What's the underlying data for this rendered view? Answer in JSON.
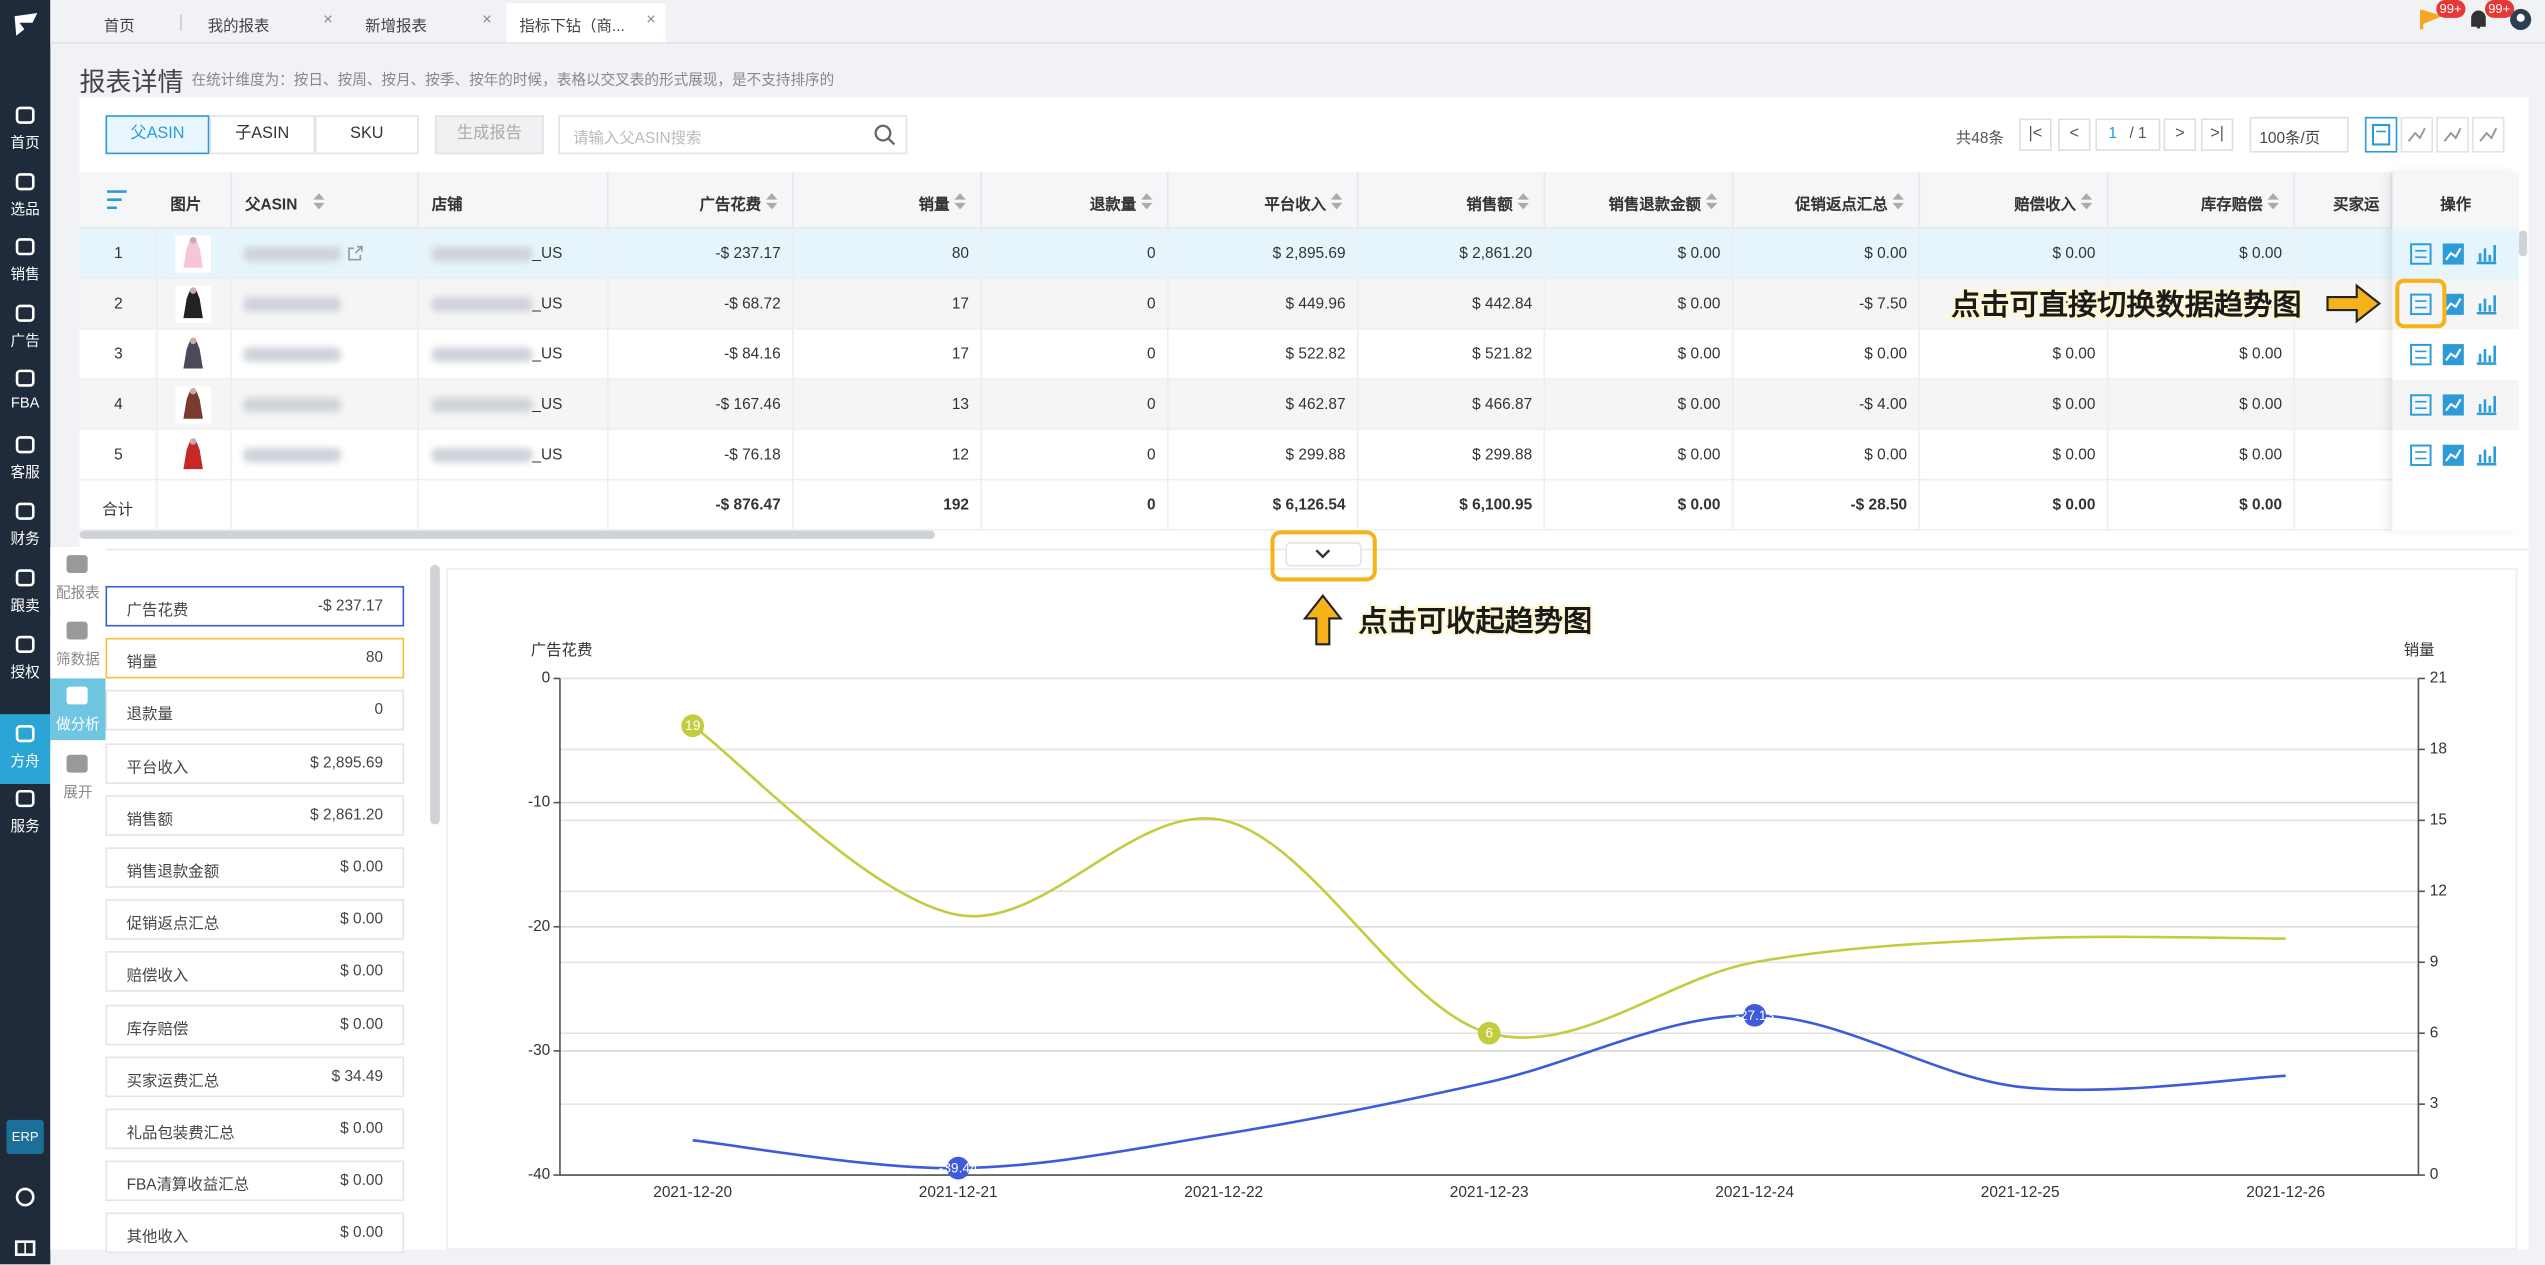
{
  "sidebar": {
    "items": [
      "首页",
      "选品",
      "销售",
      "广告",
      "FBA",
      "客服",
      "财务",
      "跟卖",
      "授权",
      "方舟",
      "服务"
    ],
    "active": 9,
    "erp": "ERP"
  },
  "tabs": [
    "首页",
    "我的报表",
    "新增报表",
    "指标下钻（商..."
  ],
  "active_tab": 3,
  "badges": [
    "99+",
    "99+"
  ],
  "header": {
    "title": "报表详情",
    "subtitle": "在统计维度为：按日、按周、按月、按季、按年的时候，表格以交叉表的形式展现，是不支持排序的"
  },
  "toolbar": {
    "segments": [
      "父ASIN",
      "子ASIN",
      "SKU"
    ],
    "active_segment": 0,
    "button": "生成报告",
    "search_placeholder": "请输入父ASIN搜索",
    "total": "共48条",
    "page": "1",
    "pages": "/ 1",
    "page_size": "100条/页"
  },
  "table": {
    "columns": [
      "图片",
      "父ASIN",
      "店铺",
      "广告花费",
      "销量",
      "退款量",
      "平台收入",
      "销售额",
      "销售退款金额",
      "促销返点汇总",
      "赔偿收入",
      "库存赔偿",
      "买家运",
      "操作"
    ],
    "rows": [
      {
        "index": "1",
        "store": "_US",
        "cells": [
          "-$ 237.17",
          "80",
          "0",
          "$ 2,895.69",
          "$ 2,861.20",
          "$ 0.00",
          "$ 0.00",
          "$ 0.00",
          "$ 0.00"
        ]
      },
      {
        "index": "2",
        "store": "_US",
        "cells": [
          "-$ 68.72",
          "17",
          "0",
          "$ 449.96",
          "$ 442.84",
          "$ 0.00",
          "-$ 7.50",
          "$ 0.00",
          "$ 0.00"
        ]
      },
      {
        "index": "3",
        "store": "_US",
        "cells": [
          "-$ 84.16",
          "17",
          "0",
          "$ 522.82",
          "$ 521.82",
          "$ 0.00",
          "$ 0.00",
          "$ 0.00",
          "$ 0.00"
        ]
      },
      {
        "index": "4",
        "store": "_US",
        "cells": [
          "-$ 167.46",
          "13",
          "0",
          "$ 462.87",
          "$ 466.87",
          "$ 0.00",
          "-$ 4.00",
          "$ 0.00",
          "$ 0.00"
        ]
      },
      {
        "index": "5",
        "store": "_US",
        "cells": [
          "-$ 76.18",
          "12",
          "0",
          "$ 299.88",
          "$ 299.88",
          "$ 0.00",
          "$ 0.00",
          "$ 0.00",
          "$ 0.00"
        ]
      }
    ],
    "total": {
      "label": "合计",
      "cells": [
        "-$ 876.47",
        "192",
        "0",
        "$ 6,126.54",
        "$ 6,100.95",
        "$ 0.00",
        "-$ 28.50",
        "$ 0.00",
        "$ 0.00"
      ]
    }
  },
  "side_tools": [
    "配报表",
    "筛数据",
    "做分析",
    "展开"
  ],
  "active_tool": 2,
  "metrics": [
    {
      "label": "广告花费",
      "value": "-$ 237.17"
    },
    {
      "label": "销量",
      "value": "80"
    },
    {
      "label": "退款量",
      "value": "0"
    },
    {
      "label": "平台收入",
      "value": "$ 2,895.69"
    },
    {
      "label": "销售额",
      "value": "$ 2,861.20"
    },
    {
      "label": "销售退款金额",
      "value": "$ 0.00"
    },
    {
      "label": "促销返点汇总",
      "value": "$ 0.00"
    },
    {
      "label": "赔偿收入",
      "value": "$ 0.00"
    },
    {
      "label": "库存赔偿",
      "value": "$ 0.00"
    },
    {
      "label": "买家运费汇总",
      "value": "$ 34.49"
    },
    {
      "label": "礼品包装费汇总",
      "value": "$ 0.00"
    },
    {
      "label": "FBA清算收益汇总",
      "value": "$ 0.00"
    },
    {
      "label": "其他收入",
      "value": "$ 0.00"
    }
  ],
  "chart_data": {
    "type": "line",
    "y_label": "广告花费",
    "y2_label": "销量",
    "categories": [
      "2021-12-20",
      "2021-12-21",
      "2021-12-22",
      "2021-12-23",
      "2021-12-24",
      "2021-12-25",
      "2021-12-26"
    ],
    "ylim": [
      -40,
      0
    ],
    "yticks": [
      0,
      -10,
      -20,
      -30,
      -40
    ],
    "y2lim": [
      0,
      21
    ],
    "y2ticks": [
      21,
      18,
      15,
      12,
      9,
      6,
      3,
      0
    ],
    "grid": true,
    "series": [
      {
        "color": "#c3cb3e",
        "axis": "y2",
        "values": [
          19,
          11,
          15,
          6,
          9,
          10,
          10
        ],
        "value_labels": [
          "19",
          null,
          null,
          "6",
          null,
          null,
          null
        ]
      },
      {
        "color": "#3d5bdb",
        "axis": "y",
        "values": [
          -37.2,
          -39.44,
          -36.7,
          -32.5,
          -27.13,
          -32.9,
          -32.0
        ],
        "value_labels": [
          null,
          "-39.44",
          null,
          null,
          "-27.13",
          null,
          null
        ]
      }
    ]
  },
  "annotations": [
    "点击可直接切换数据趋势图",
    "点击可收起趋势图"
  ]
}
